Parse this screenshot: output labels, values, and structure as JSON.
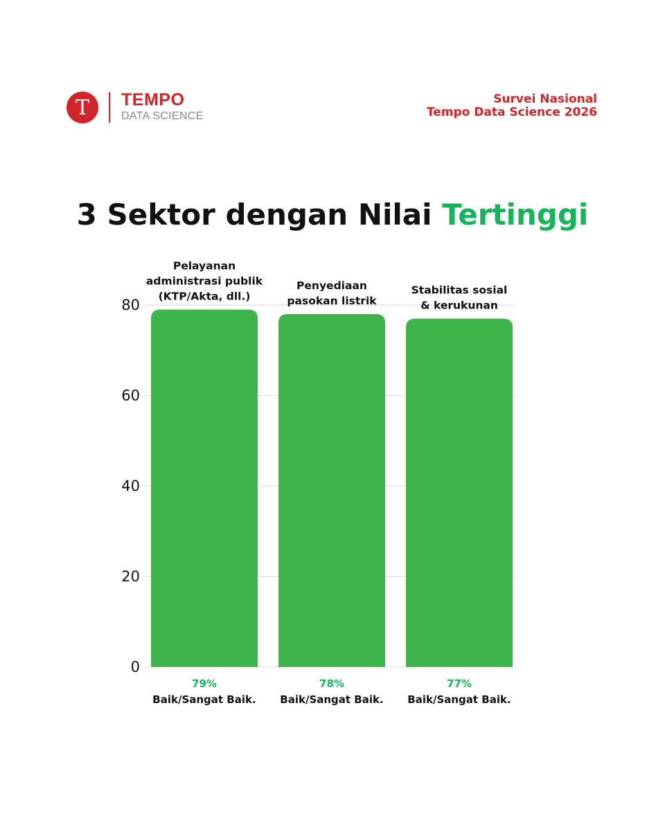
{
  "header": {
    "logo_letter": "T",
    "brand_name": "TEMPO",
    "brand_sub": "DATA SCIENCE",
    "survey_line1": "Survei Nasional",
    "survey_line2": "Tempo Data Science 2026"
  },
  "colors": {
    "brand_red": "#d0262b",
    "bar_green": "#3db54a",
    "accent_green": "#18b45c",
    "gridline": "#d9d9d9"
  },
  "chart_data": {
    "type": "bar",
    "title": "3 Sektor dengan Nilai Tertinggi",
    "title_main": "3 Sektor dengan Nilai ",
    "title_highlight": "Tertinggi",
    "categories": [
      [
        "Pelayanan",
        "administrasi publik",
        "(KTP/Akta, dll.)"
      ],
      [
        "Penyediaan",
        "pasokan listrik"
      ],
      [
        "Stabilitas sosial",
        "& kerukunan"
      ]
    ],
    "values": [
      79,
      78,
      77
    ],
    "value_labels": [
      "79%",
      "78%",
      "77%"
    ],
    "value_descriptions": [
      "Baik/Sangat Baik.",
      "Baik/Sangat Baik.",
      "Baik/Sangat Baik."
    ],
    "ylim": [
      0,
      80
    ],
    "yticks": [
      0,
      20,
      40,
      60,
      80
    ],
    "grid": true,
    "xlabel": "",
    "ylabel": ""
  }
}
